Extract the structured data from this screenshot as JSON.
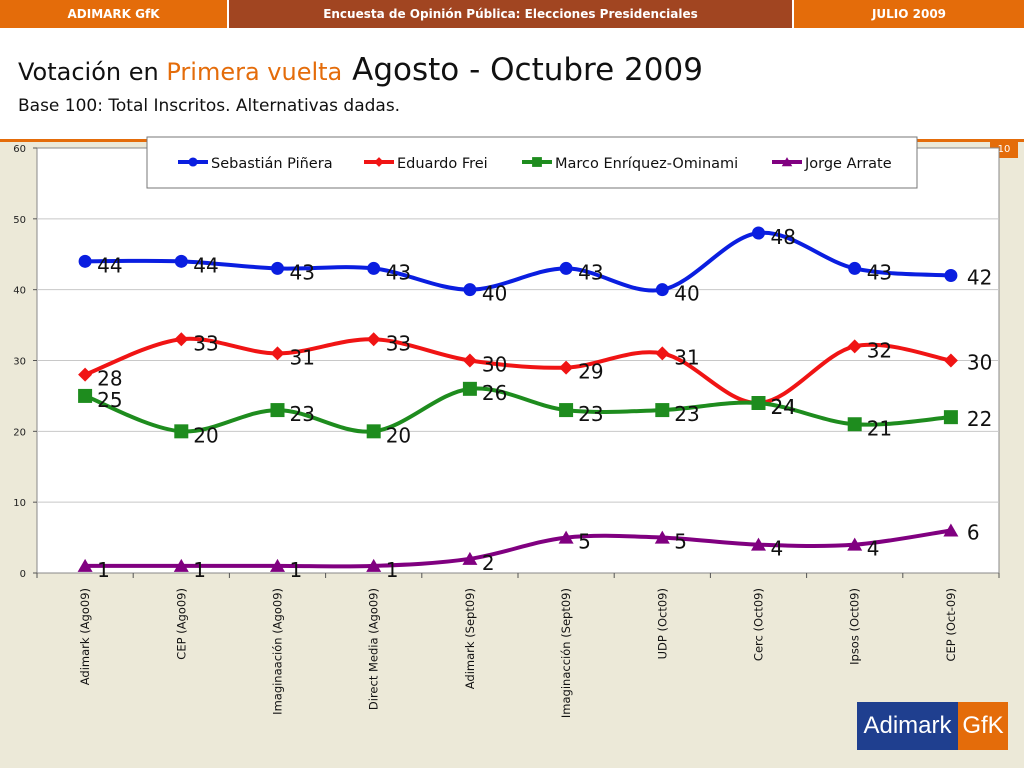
{
  "header": {
    "left": "ADIMARK GfK",
    "center": "Encuesta de Opinión Pública: Elecciones Presidenciales",
    "right": "JULIO 2009"
  },
  "title": {
    "part1": "Votación en ",
    "part2": "Primera vuelta",
    "part3": " Agosto - Octubre 2009"
  },
  "subtitle": "Base 100: Total Inscritos. Alternativas dadas.",
  "page_number": "10",
  "logo": {
    "part1": "Adimark",
    "part2": "GfK"
  },
  "chart_data": {
    "type": "line",
    "categories": [
      "Adimark (Ago09)",
      "CEP (Ago09)",
      "Imaginaación (Ago09)",
      "Direct Media (Ago09)",
      "Adimark (Sept09)",
      "Imaginacción (Sept09)",
      "UDP (Oct09)",
      "Cerc (Oct09)",
      "Ipsos (Oct09)",
      "CEP (Oct-09)"
    ],
    "ylim": [
      0,
      60
    ],
    "yticks": [
      0,
      10,
      20,
      30,
      40,
      50,
      60
    ],
    "grid": true,
    "legend_position": "top",
    "series": [
      {
        "name": "Sebastián Piñera",
        "values": [
          44,
          44,
          43,
          43,
          40,
          43,
          40,
          48,
          43,
          42
        ],
        "color": "#0A1EE0",
        "marker": "circle"
      },
      {
        "name": "Eduardo Frei",
        "values": [
          28,
          33,
          31,
          33,
          30,
          29,
          31,
          24,
          32,
          30
        ],
        "color": "#F01414",
        "marker": "diamond"
      },
      {
        "name": "Marco Enríquez-Ominami",
        "values": [
          25,
          20,
          23,
          20,
          26,
          23,
          23,
          24,
          21,
          22
        ],
        "color": "#1E8C1E",
        "marker": "square"
      },
      {
        "name": "Jorge Arrate",
        "values": [
          1,
          1,
          1,
          1,
          2,
          5,
          5,
          4,
          4,
          6
        ],
        "color": "#800080",
        "marker": "triangle"
      }
    ]
  }
}
